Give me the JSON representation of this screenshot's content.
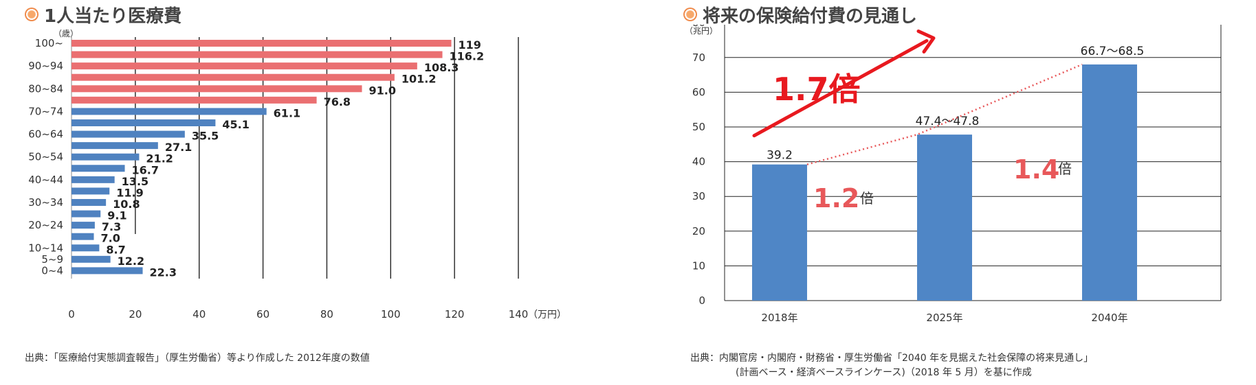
{
  "left": {
    "title": "1人当たり医療費",
    "source": "出典：「医療給付実態調査報告」（厚生労働省）等より作成した 2012年度の数値",
    "colors": {
      "elderly": "#ea6f71",
      "young": "#4f82c0"
    },
    "chart_data": {
      "type": "bar",
      "orientation": "horizontal",
      "ylabel": "（歳）",
      "xlabel": "（万円）",
      "xlim": [
        0,
        140
      ],
      "xticks": [
        "0",
        "20",
        "40",
        "60",
        "80",
        "100",
        "120",
        "140"
      ],
      "grid": true,
      "shown_category_labels": [
        "100~",
        "90~94",
        "80~84",
        "70~74",
        "60~64",
        "50~54",
        "40~44",
        "30~34",
        "20~24",
        "10~14",
        "5~9",
        "0~4"
      ],
      "values": [
        119,
        116.2,
        108.3,
        101.2,
        91.0,
        76.8,
        61.1,
        45.1,
        35.5,
        27.1,
        21.2,
        16.7,
        13.5,
        11.9,
        10.8,
        9.1,
        7.3,
        7.0,
        8.7,
        12.2,
        22.3
      ],
      "value_labels": [
        "119",
        "116.2",
        "108.3",
        "101.2",
        "91.0",
        "76.8",
        "61.1",
        "45.1",
        "35.5",
        "27.1",
        "21.2",
        "16.7",
        "13.5",
        "11.9",
        "10.8",
        "9.1",
        "7.3",
        "7.0",
        "8.7",
        "12.2",
        "22.3"
      ]
    }
  },
  "right": {
    "title": "将来の保険給付費の見通し",
    "source_line1": "出典：内閣官房・内閣府・財務省・厚生労働省「2040 年を見据えた社会保障の将来見通し」",
    "source_line2": "(計画ベース・経済ベースラインケース)（2018 年 5 月）を基に作成",
    "colors": {
      "bar": "#4f86c6",
      "arrow": "#e8191f",
      "ratio": "#e8585a"
    },
    "chart_data": {
      "type": "bar",
      "ylabel": "（兆円）",
      "ylim": [
        0,
        80
      ],
      "yticks": [
        "0",
        "10",
        "20",
        "30",
        "40",
        "50",
        "60",
        "70",
        "80"
      ],
      "grid": true,
      "categories": [
        "2018年",
        "2025年",
        "2040年"
      ],
      "values": [
        39.2,
        47.8,
        68.0
      ],
      "value_labels": [
        "39.2",
        "47.4～47.8",
        "66.7～68.5"
      ],
      "annotations": {
        "overall": "1.7倍",
        "ratio1_num": "1.2",
        "ratio2_num": "1.4",
        "ratio_unit": "倍"
      }
    }
  }
}
